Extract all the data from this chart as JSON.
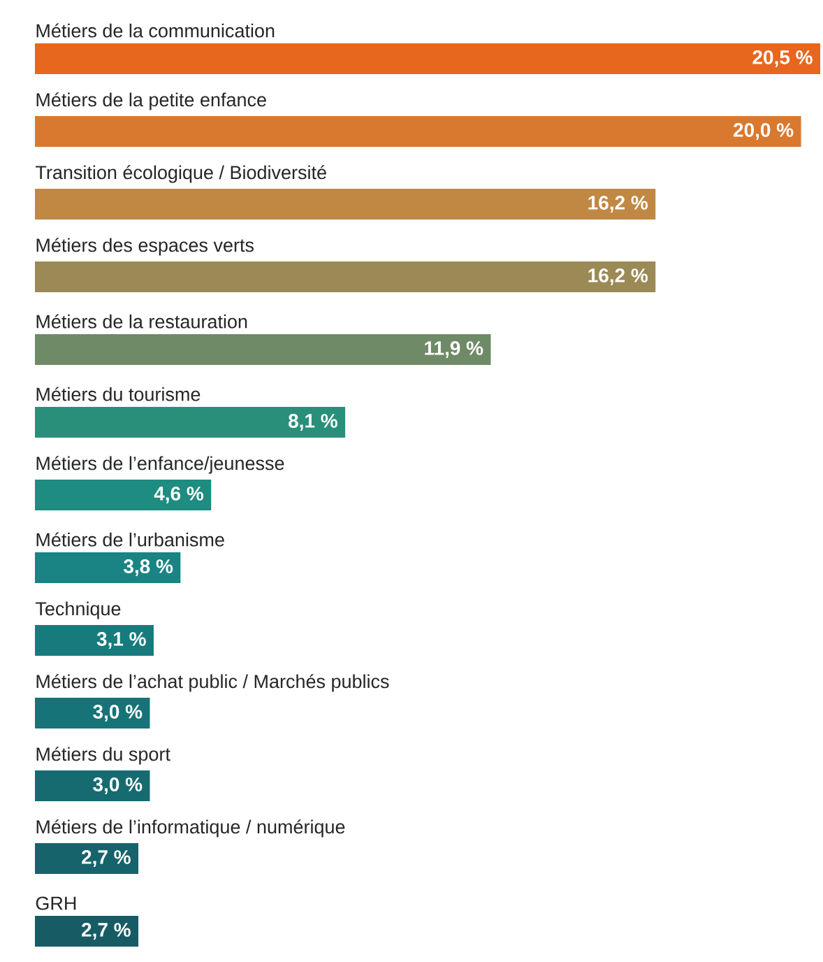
{
  "chart_data": {
    "type": "bar",
    "orientation": "horizontal",
    "categories": [
      "Métiers de la communication",
      "Métiers de la petite enfance",
      "Transition écologique / Biodiversité",
      "Métiers des espaces verts",
      "Métiers de la restauration",
      "Métiers du tourisme",
      "Métiers de l’enfance/jeunesse",
      "Métiers de l’urbanisme",
      "Technique",
      "Métiers de l’achat public / Marchés publics",
      "Métiers du sport",
      "Métiers de l’informatique / numérique",
      "GRH"
    ],
    "values": [
      20.5,
      20.0,
      16.2,
      16.2,
      11.9,
      8.1,
      4.6,
      3.8,
      3.1,
      3.0,
      3.0,
      2.7,
      2.7
    ],
    "value_labels": [
      "20,5 %",
      "20,0 %",
      "16,2 %",
      "16,2 %",
      "11,9 %",
      "8,1 %",
      "4,6 %",
      "3,8 %",
      "3,1 %",
      "3,0 %",
      "3,0 %",
      "2,7 %",
      "2,7 %"
    ],
    "colors": [
      "#e8671e",
      "#d8792f",
      "#c08843",
      "#9b8a55",
      "#6f8a66",
      "#2a8f7a",
      "#1e8c80",
      "#1a8383",
      "#177b7e",
      "#167377",
      "#166b71",
      "#17636b",
      "#175c65"
    ]
  }
}
